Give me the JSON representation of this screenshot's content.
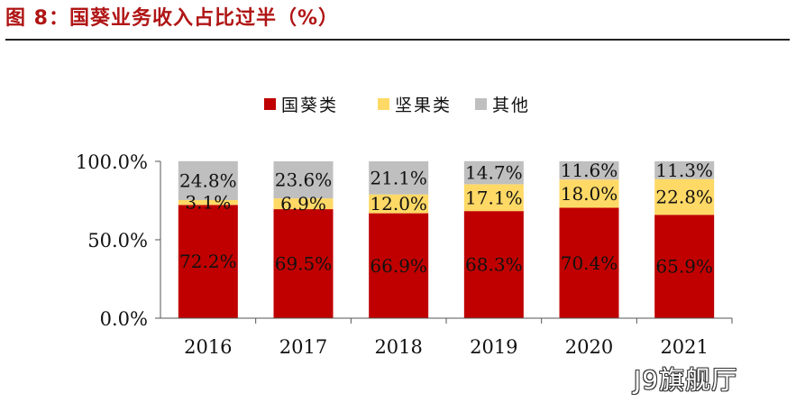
{
  "figure": {
    "title": "图 8：国葵业务收入占比过半（%）"
  },
  "watermark": "J9旗舰厅",
  "chart_data": {
    "type": "bar",
    "stacked": true,
    "categories": [
      "2016",
      "2017",
      "2018",
      "2019",
      "2020",
      "2021"
    ],
    "series": [
      {
        "name": "国葵类",
        "color": "#c00000",
        "values": [
          72.2,
          69.5,
          66.9,
          68.3,
          70.4,
          65.9
        ]
      },
      {
        "name": "坚果类",
        "color": "#ffd966",
        "values": [
          3.1,
          6.9,
          12.0,
          17.1,
          18.0,
          22.8
        ]
      },
      {
        "name": "其他",
        "color": "#bfbfbf",
        "values": [
          24.8,
          23.6,
          21.1,
          14.7,
          11.6,
          11.3
        ]
      }
    ],
    "y_ticks": [
      "0.0%",
      "50.0%",
      "100.0%"
    ],
    "ylim": [
      0,
      100
    ],
    "legend_position": "top-center",
    "grid": false
  }
}
